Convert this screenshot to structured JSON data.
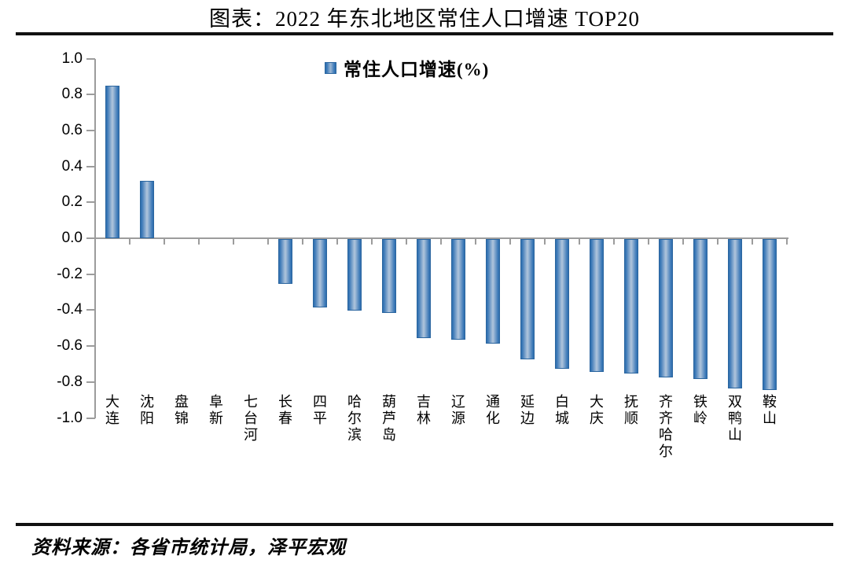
{
  "title": "图表：2022 年东北地区常住人口增速 TOP20",
  "legend": {
    "label": "常住人口增速(%)"
  },
  "source": "资料来源：各省市统计局，泽平宏观",
  "colors": {
    "bar_edge": "#2f6fae",
    "bar_center": "#b0c5dc",
    "bar_border": "#2a659f",
    "axis_gray": "#9c9c9c",
    "rule_black": "#111111"
  },
  "chart_data": {
    "type": "bar",
    "title": "图表：2022 年东北地区常住人口增速 TOP20",
    "series_name": "常住人口增速(%)",
    "categories": [
      "大连",
      "沈阳",
      "盘锦",
      "阜新",
      "七台河",
      "长春",
      "四平",
      "哈尔滨",
      "葫芦岛",
      "吉林",
      "辽源",
      "通化",
      "延边",
      "白城",
      "大庆",
      "抚顺",
      "齐齐哈尔",
      "铁岭",
      "双鸭山",
      "鞍山"
    ],
    "values": [
      0.85,
      0.32,
      0,
      0,
      0,
      -0.25,
      -0.38,
      -0.4,
      -0.41,
      -0.55,
      -0.56,
      -0.58,
      -0.67,
      -0.72,
      -0.74,
      -0.75,
      -0.77,
      -0.78,
      -0.83,
      -0.84
    ],
    "unit": "%",
    "xlabel": "",
    "ylabel": "",
    "ylim": [
      -1.0,
      1.0
    ],
    "yticks": [
      1.0,
      0.8,
      0.6,
      0.4,
      0.2,
      0.0,
      -0.2,
      -0.4,
      -0.6,
      -0.8,
      -1.0
    ],
    "ytick_labels": [
      "1.0",
      "0.8",
      "0.6",
      "0.4",
      "0.2",
      "0.0",
      "-0.2",
      "-0.4",
      "-0.6",
      "-0.8",
      "-1.0"
    ],
    "grid": false,
    "legend_position": "top-center"
  }
}
